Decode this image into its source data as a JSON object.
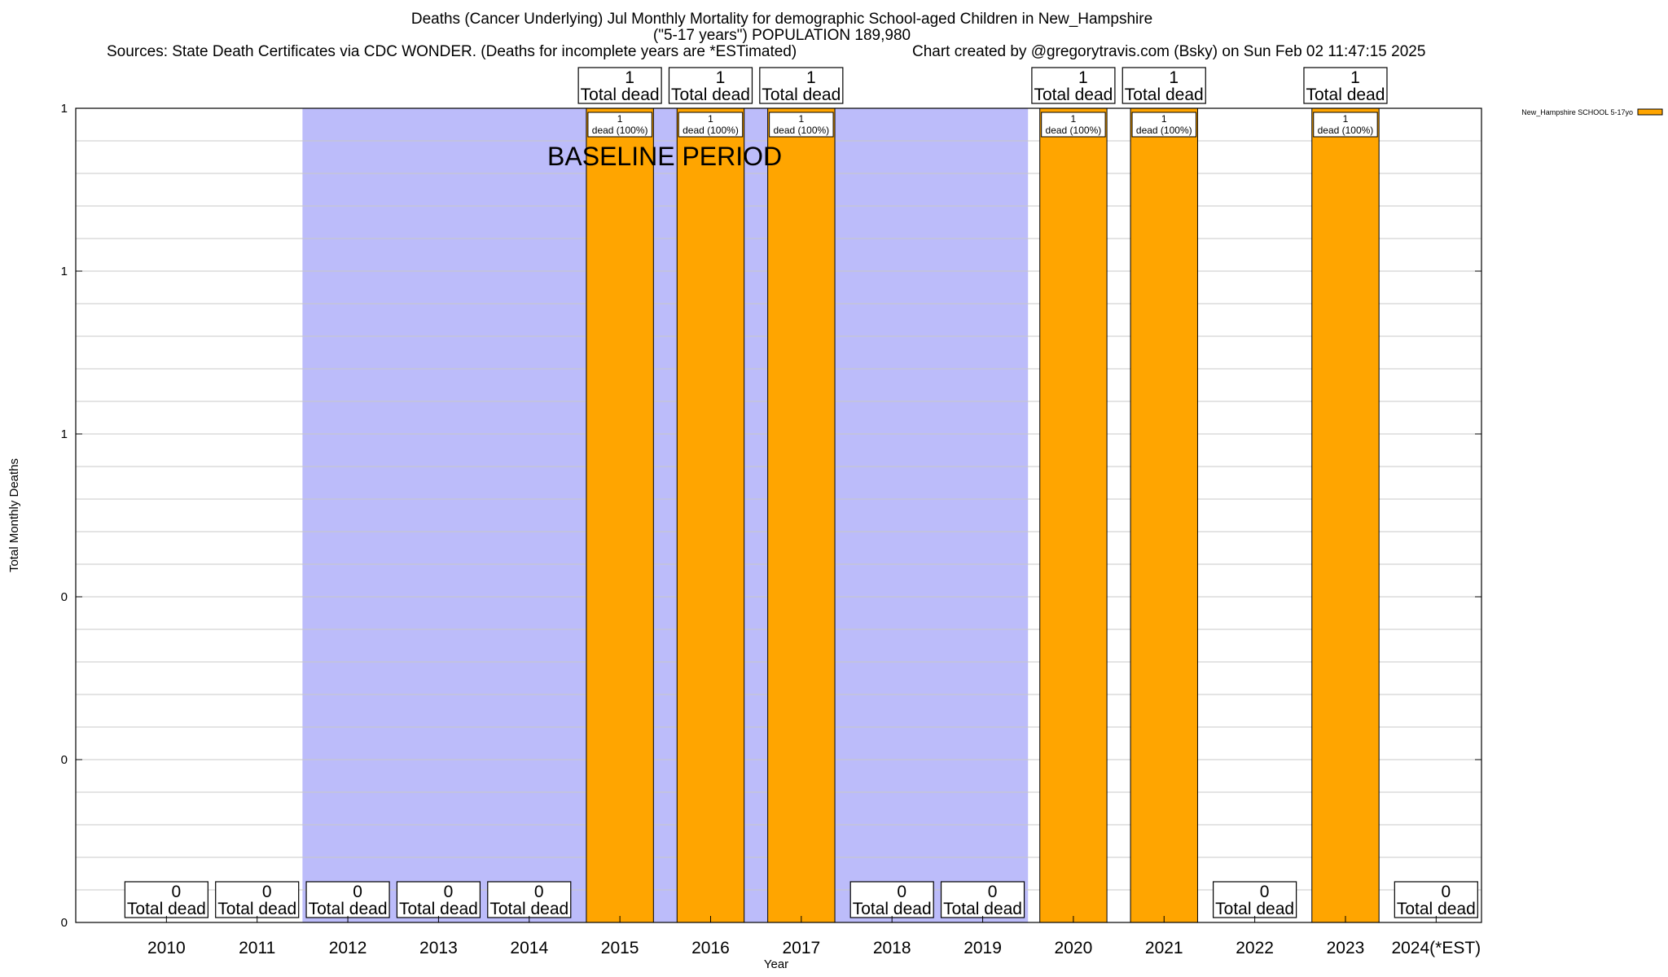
{
  "header": {
    "title_line1": "Deaths (Cancer Underlying) Jul Monthly Mortality for demographic School-aged Children in New_Hampshire",
    "title_line2": "(\"5-17 years\") POPULATION 189,980",
    "sources": "Sources: State Death Certificates via CDC WONDER. (Deaths for incomplete years are *ESTimated)",
    "credit": "Chart created by @gregorytravis.com (Bsky) on Sun Feb 02 11:47:15 2025"
  },
  "chart_data": {
    "type": "bar",
    "xlabel": "Year",
    "ylabel": "Total Monthly Deaths",
    "ylim": [
      0,
      1
    ],
    "y_tick_labels": [
      "0",
      "0",
      "0",
      "1",
      "1",
      "1"
    ],
    "grid": true,
    "legend_position": "top-right",
    "categories": [
      "2010",
      "2011",
      "2012",
      "2013",
      "2014",
      "2015",
      "2016",
      "2017",
      "2018",
      "2019",
      "2020",
      "2021",
      "2022",
      "2023",
      "2024(*EST)"
    ],
    "series": [
      {
        "name": "New_Hampshire SCHOOL 5-17yo",
        "values": [
          0,
          0,
          0,
          0,
          0,
          1,
          1,
          1,
          0,
          0,
          1,
          1,
          0,
          1,
          0
        ]
      }
    ],
    "total_labels": [
      "0",
      "0",
      "0",
      "0",
      "0",
      "1",
      "1",
      "1",
      "0",
      "0",
      "1",
      "1",
      "0",
      "1",
      "0"
    ],
    "total_caption": "Total dead",
    "bar_labels": [
      {
        "category": "2015",
        "count": "1",
        "text": "dead (100%)"
      },
      {
        "category": "2016",
        "count": "1",
        "text": "dead (100%)"
      },
      {
        "category": "2017",
        "count": "1",
        "text": "dead (100%)"
      },
      {
        "category": "2020",
        "count": "1",
        "text": "dead (100%)"
      },
      {
        "category": "2021",
        "count": "1",
        "text": "dead (100%)"
      },
      {
        "category": "2023",
        "count": "1",
        "text": "dead (100%)"
      }
    ],
    "baseline_period": {
      "label": "BASELINE PERIOD",
      "start": "2012",
      "end": "2019"
    },
    "colors": {
      "bar": "#ffa500",
      "baseline_shade": "#bcbcfa",
      "grid": "#c8c8c8"
    }
  }
}
